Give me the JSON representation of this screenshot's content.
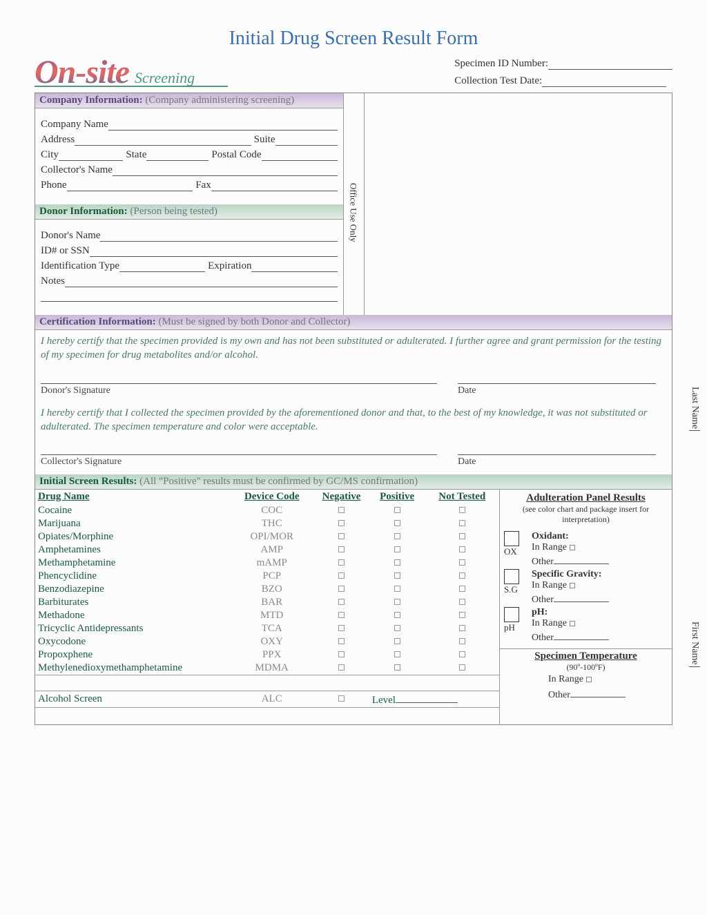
{
  "title": "Initial Drug Screen Result Form",
  "logo": {
    "main": "On-site",
    "sub": "Screening"
  },
  "specimen": {
    "id_label": "Specimen ID Number:",
    "date_label": "Collection Test Date:"
  },
  "sections": {
    "company": {
      "title": "Company Information:",
      "sub": "(Company administering screening)",
      "fields": {
        "company_name": "Company Name",
        "address": "Address",
        "suite": "Suite",
        "city": "City",
        "state": "State",
        "postal": "Postal Code",
        "collector": "Collector's Name",
        "phone": "Phone",
        "fax": "Fax"
      }
    },
    "donor": {
      "title": "Donor Information:",
      "sub": "(Person being tested)",
      "fields": {
        "name": "Donor's Name",
        "id": "ID# or SSN",
        "idtype": "Identification Type",
        "exp": "Expiration",
        "notes": "Notes"
      }
    },
    "office_use": "Office Use Only",
    "cert": {
      "title": "Certification Information:",
      "sub": "(Must be signed by both Donor and Collector)",
      "donor_text": "I hereby certify that the specimen provided is my own and has not been substituted or adulterated. I further agree and grant permission for the testing of my specimen for drug metabolites and/or alcohol.",
      "collector_text": "I hereby certify that I collected the specimen provided by the aforementioned donor and that, to the best of my knowledge, it was not substituted or adulterated. The specimen temperature and color were acceptable.",
      "donor_sig": "Donor's Signature",
      "collector_sig": "Collector's Signature",
      "date": "Date"
    },
    "results": {
      "title": "Initial Screen Results:",
      "sub": "(All \"Positive\" results must be confirmed by GC/MS confirmation)",
      "cols": {
        "drug": "Drug Name",
        "code": "Device Code",
        "neg": "Negative",
        "pos": "Positive",
        "nt": "Not Tested"
      },
      "rows": [
        {
          "name": "Cocaine",
          "code": "COC"
        },
        {
          "name": "Marijuana",
          "code": "THC"
        },
        {
          "name": "Opiates/Morphine",
          "code": "OPI/MOR"
        },
        {
          "name": "Amphetamines",
          "code": "AMP"
        },
        {
          "name": "Methamphetamine",
          "code": "mAMP"
        },
        {
          "name": "Phencyclidine",
          "code": "PCP"
        },
        {
          "name": "Benzodiazepine",
          "code": "BZO"
        },
        {
          "name": "Barbiturates",
          "code": "BAR"
        },
        {
          "name": "Methadone",
          "code": "MTD"
        },
        {
          "name": "Tricyclic Antidepressants",
          "code": "TCA"
        },
        {
          "name": "Oxycodone",
          "code": "OXY"
        },
        {
          "name": "Propoxphene",
          "code": "PPX"
        },
        {
          "name": "Methylenedioxymethamphetamine",
          "code": "MDMA"
        }
      ],
      "alcohol": {
        "name": "Alcohol Screen",
        "code": "ALC",
        "level": "Level"
      }
    },
    "adult": {
      "title": "Adulteration Panel Results",
      "sub": "(see color chart and package insert for interpretation)",
      "panels": [
        {
          "code": "OX",
          "head": "Oxidant:",
          "in_range": "In Range",
          "other": "Other"
        },
        {
          "code": "S.G",
          "head": "Specific Gravity:",
          "in_range": "In Range",
          "other": "Other"
        },
        {
          "code": "pH",
          "head": "pH:",
          "in_range": "In Range",
          "other": "Other"
        }
      ],
      "temp": {
        "title": "Specimen Temperature",
        "range": "(90º-100ºF)",
        "in_range": "In Range",
        "other": "Other"
      }
    }
  },
  "side": {
    "last": "Last Name",
    "first": "First Name"
  }
}
